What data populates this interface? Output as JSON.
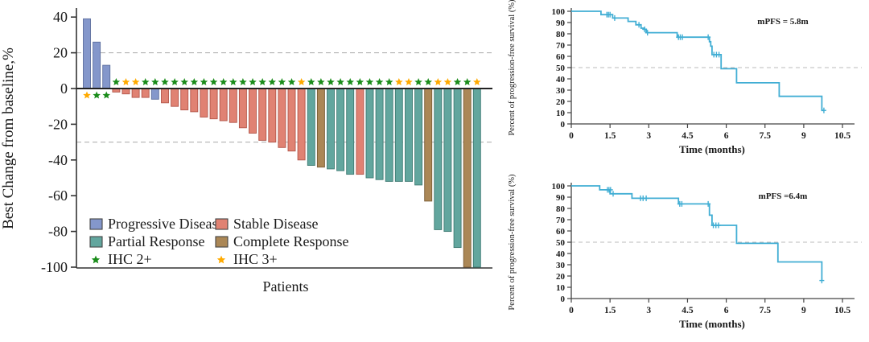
{
  "figure_title": "",
  "colors": {
    "progressive": "#8497cb",
    "progressive_border": "#5c6e9e",
    "stable": "#e08273",
    "stable_border": "#b2564a",
    "partial": "#62a69e",
    "partial_border": "#3e7a72",
    "complete": "#ab8756",
    "complete_border": "#7a5d36",
    "ihc2": "#1a8c1a",
    "ihc3": "#ffaa00",
    "km_line": "#41aed4",
    "grid_dash": "#aaaaaa",
    "axis": "#333333",
    "zero_line": "#222222",
    "annotation_text": "#555555"
  },
  "chart_data": [
    {
      "type": "bar",
      "name": "waterfall",
      "xlabel": "Patients",
      "ylabel": "Best Change from baseline,%",
      "ylim": [
        -100,
        40
      ],
      "yticks": [
        40,
        20,
        0,
        -20,
        -40,
        -60,
        -80,
        -100
      ],
      "ref_lines": [
        20,
        -30
      ],
      "legend": [
        {
          "label": "Progressive Disease",
          "swatch": "progressive",
          "kind": "box"
        },
        {
          "label": "Stable Disease",
          "swatch": "stable",
          "kind": "box"
        },
        {
          "label": "Partial Response",
          "swatch": "partial",
          "kind": "box"
        },
        {
          "label": "Complete Response",
          "swatch": "complete",
          "kind": "box"
        },
        {
          "label": "IHC 2+",
          "swatch": "ihc2",
          "kind": "star"
        },
        {
          "label": "IHC 3+",
          "swatch": "ihc3",
          "kind": "star"
        }
      ],
      "bars": [
        {
          "value": 39,
          "category": "PD",
          "ihc": "3+"
        },
        {
          "value": 26,
          "category": "PD",
          "ihc": "2+"
        },
        {
          "value": 13,
          "category": "PD",
          "ihc": "2+"
        },
        {
          "value": -2,
          "category": "SD",
          "ihc": "2+"
        },
        {
          "value": -3,
          "category": "SD",
          "ihc": "3+"
        },
        {
          "value": -5,
          "category": "SD",
          "ihc": "3+"
        },
        {
          "value": -5,
          "category": "SD",
          "ihc": "2+"
        },
        {
          "value": -6,
          "category": "PD",
          "ihc": "2+"
        },
        {
          "value": -8,
          "category": "SD",
          "ihc": "2+"
        },
        {
          "value": -10,
          "category": "SD",
          "ihc": "2+"
        },
        {
          "value": -12,
          "category": "SD",
          "ihc": "2+"
        },
        {
          "value": -13,
          "category": "SD",
          "ihc": "2+"
        },
        {
          "value": -16,
          "category": "SD",
          "ihc": "2+"
        },
        {
          "value": -17,
          "category": "SD",
          "ihc": "2+"
        },
        {
          "value": -18,
          "category": "SD",
          "ihc": "2+"
        },
        {
          "value": -19,
          "category": "SD",
          "ihc": "2+"
        },
        {
          "value": -22,
          "category": "SD",
          "ihc": "2+"
        },
        {
          "value": -25,
          "category": "SD",
          "ihc": "2+"
        },
        {
          "value": -29,
          "category": "SD",
          "ihc": "2+"
        },
        {
          "value": -30,
          "category": "SD",
          "ihc": "2+"
        },
        {
          "value": -33,
          "category": "SD",
          "ihc": "2+"
        },
        {
          "value": -35,
          "category": "SD",
          "ihc": "2+"
        },
        {
          "value": -40,
          "category": "SD",
          "ihc": "3+"
        },
        {
          "value": -43,
          "category": "PR",
          "ihc": "2+"
        },
        {
          "value": -44,
          "category": "CR",
          "ihc": "2+"
        },
        {
          "value": -45,
          "category": "PR",
          "ihc": "2+"
        },
        {
          "value": -46,
          "category": "PR",
          "ihc": "2+"
        },
        {
          "value": -48,
          "category": "PR",
          "ihc": "2+"
        },
        {
          "value": -48,
          "category": "SD",
          "ihc": "2+"
        },
        {
          "value": -50,
          "category": "PR",
          "ihc": "2+"
        },
        {
          "value": -51,
          "category": "PR",
          "ihc": "2+"
        },
        {
          "value": -52,
          "category": "PR",
          "ihc": "2+"
        },
        {
          "value": -52,
          "category": "PR",
          "ihc": "3+"
        },
        {
          "value": -52,
          "category": "PR",
          "ihc": "3+"
        },
        {
          "value": -54,
          "category": "PR",
          "ihc": "2+"
        },
        {
          "value": -63,
          "category": "CR",
          "ihc": "2+"
        },
        {
          "value": -79,
          "category": "PR",
          "ihc": "3+"
        },
        {
          "value": -80,
          "category": "PR",
          "ihc": "3+"
        },
        {
          "value": -89,
          "category": "PR",
          "ihc": "2+"
        },
        {
          "value": -100,
          "category": "CR",
          "ihc": "2+"
        },
        {
          "value": -100,
          "category": "PR",
          "ihc": "3+"
        }
      ]
    },
    {
      "type": "line",
      "name": "km_top",
      "annotation": "mPFS = 5.8m",
      "xlabel": "Time (months)",
      "ylabel": "Percent of progression-free survival (%)",
      "xticks": [
        0,
        1.5,
        3,
        4.5,
        6,
        7.5,
        9,
        10.5
      ],
      "yticks": [
        0,
        10,
        20,
        30,
        40,
        50,
        60,
        70,
        80,
        90,
        100
      ],
      "xlim": [
        0,
        10.5
      ],
      "ylim": [
        0,
        100
      ],
      "median_ref": 50,
      "steps": [
        [
          0,
          100
        ],
        [
          1.15,
          100
        ],
        [
          1.15,
          97
        ],
        [
          1.6,
          97
        ],
        [
          1.6,
          94
        ],
        [
          2.2,
          94
        ],
        [
          2.2,
          91
        ],
        [
          2.5,
          91
        ],
        [
          2.5,
          88
        ],
        [
          2.7,
          88
        ],
        [
          2.7,
          85
        ],
        [
          2.8,
          85
        ],
        [
          2.8,
          84
        ],
        [
          2.9,
          84
        ],
        [
          2.9,
          81
        ],
        [
          4.1,
          81
        ],
        [
          4.1,
          77
        ],
        [
          5.35,
          77
        ],
        [
          5.35,
          73
        ],
        [
          5.4,
          73
        ],
        [
          5.4,
          69
        ],
        [
          5.45,
          69
        ],
        [
          5.45,
          61.5
        ],
        [
          5.8,
          61.5
        ],
        [
          5.8,
          49
        ],
        [
          6.4,
          49
        ],
        [
          6.4,
          36.5
        ],
        [
          8.05,
          36.5
        ],
        [
          8.05,
          24.5
        ],
        [
          9.7,
          24.5
        ],
        [
          9.7,
          12
        ],
        [
          9.78,
          12
        ]
      ],
      "censors": [
        [
          1.38,
          97
        ],
        [
          1.44,
          97
        ],
        [
          1.5,
          97
        ],
        [
          1.68,
          94
        ],
        [
          2.62,
          88
        ],
        [
          2.84,
          84
        ],
        [
          2.95,
          81
        ],
        [
          4.15,
          77
        ],
        [
          4.22,
          77
        ],
        [
          4.3,
          77
        ],
        [
          5.3,
          77
        ],
        [
          5.52,
          61.5
        ],
        [
          5.62,
          61.5
        ],
        [
          5.72,
          61.5
        ],
        [
          9.78,
          12
        ]
      ]
    },
    {
      "type": "line",
      "name": "km_bottom",
      "annotation": "mPFS =6.4m",
      "xlabel": "Time (months)",
      "ylabel": "Percent of progression-free survival (%)",
      "xticks": [
        0,
        1.5,
        3,
        4.5,
        6,
        7.5,
        9,
        10.5
      ],
      "yticks": [
        0,
        10,
        20,
        30,
        40,
        50,
        60,
        70,
        80,
        90,
        100
      ],
      "xlim": [
        0,
        10.5
      ],
      "ylim": [
        0,
        100
      ],
      "median_ref": 50,
      "steps": [
        [
          0,
          100
        ],
        [
          1.1,
          100
        ],
        [
          1.1,
          96.5
        ],
        [
          1.5,
          96.5
        ],
        [
          1.5,
          93
        ],
        [
          2.35,
          93
        ],
        [
          2.35,
          89
        ],
        [
          4.15,
          89
        ],
        [
          4.15,
          84
        ],
        [
          5.35,
          84
        ],
        [
          5.35,
          74
        ],
        [
          5.45,
          74
        ],
        [
          5.45,
          65
        ],
        [
          6.4,
          65
        ],
        [
          6.4,
          49
        ],
        [
          8.0,
          49
        ],
        [
          8.0,
          32.5
        ],
        [
          9.7,
          32.5
        ],
        [
          9.7,
          16
        ]
      ],
      "censors": [
        [
          1.4,
          96.5
        ],
        [
          1.46,
          96.5
        ],
        [
          1.52,
          96.5
        ],
        [
          1.62,
          93
        ],
        [
          2.68,
          89
        ],
        [
          2.78,
          89
        ],
        [
          2.9,
          89
        ],
        [
          4.2,
          84
        ],
        [
          4.28,
          84
        ],
        [
          5.3,
          84
        ],
        [
          5.5,
          65
        ],
        [
          5.6,
          65
        ],
        [
          5.7,
          65
        ],
        [
          9.7,
          16
        ]
      ]
    }
  ]
}
